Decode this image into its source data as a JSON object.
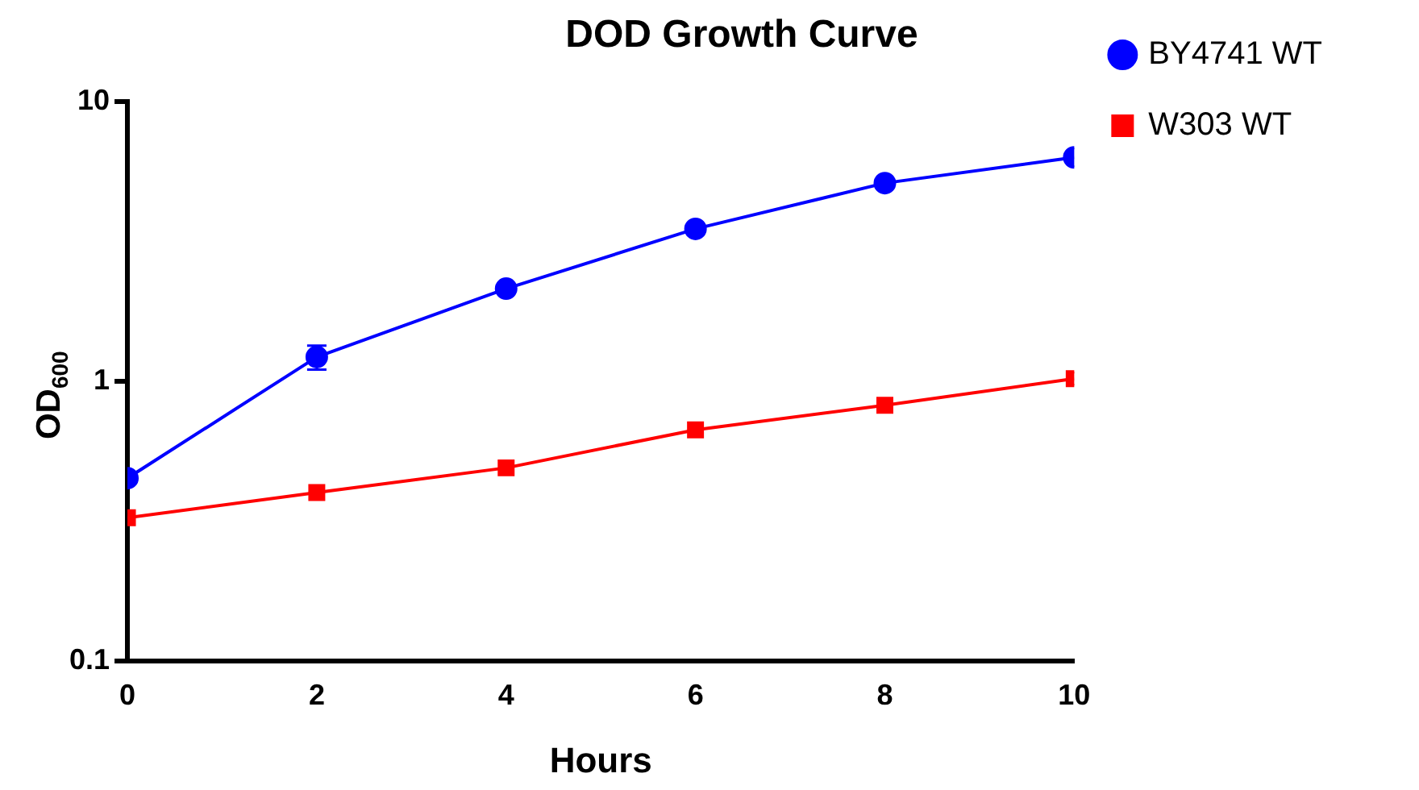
{
  "chart_data": {
    "type": "line",
    "title": "DOD Growth Curve",
    "xlabel": "Hours",
    "ylabel": "OD$_{600}$",
    "x": [
      0,
      2,
      4,
      6,
      8,
      10
    ],
    "series": [
      {
        "name": "BY4741 WT",
        "color": "#0000ff",
        "marker": "circle",
        "values": [
          0.45,
          1.22,
          2.14,
          3.5,
          5.1,
          6.3
        ],
        "errors": [
          null,
          0.12,
          null,
          null,
          null,
          null
        ]
      },
      {
        "name": "W303 WT",
        "color": "#ff0000",
        "marker": "square",
        "values": [
          0.325,
          0.4,
          0.49,
          0.67,
          0.82,
          1.02
        ]
      }
    ],
    "log": "y",
    "xlim": [
      0,
      10
    ],
    "xticks": [
      0,
      2,
      4,
      6,
      8,
      10
    ],
    "ylim": [
      0.1,
      10
    ],
    "yticks": [
      0.1,
      1,
      10
    ],
    "grid": false,
    "legend": "top right",
    "line_style": "solid"
  }
}
